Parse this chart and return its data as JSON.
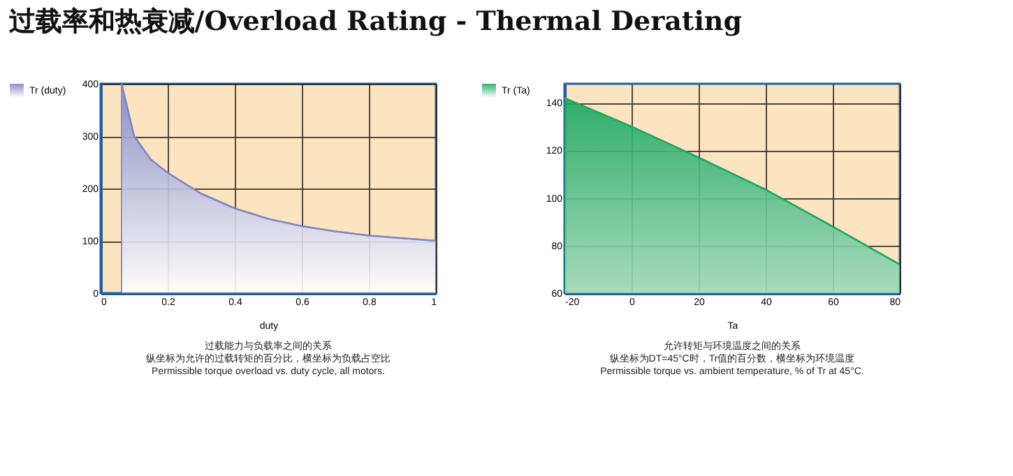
{
  "chart_data": [
    {
      "type": "area",
      "title": "过载率和热衰减/Overload Rating - Thermal Derating",
      "xlabel": "duty",
      "legend": "left",
      "grid": true,
      "x": [
        0.0625,
        0.1,
        0.15,
        0.2,
        0.3,
        0.4,
        0.5,
        0.6,
        0.7,
        0.8,
        0.9,
        1
      ],
      "series": [
        {
          "name": "Tr (duty)",
          "color": "#7f86c6",
          "values": [
            400,
            300,
            255,
            230,
            190,
            162,
            142,
            128,
            118,
            110,
            105,
            100
          ]
        }
      ],
      "xlim": [
        0,
        1
      ],
      "xticks": [
        0,
        0.2,
        0.4,
        0.6,
        0.8,
        1
      ],
      "ylim": [
        0,
        400
      ],
      "yticks": [
        0,
        100,
        200,
        300,
        400
      ],
      "annotations": [
        "过载能力与负载率之间的关系",
        "纵坐标为允许的过载转矩的百分比，横坐标为负载占空比",
        "Permissible torque overload vs. duty cycle, all motors."
      ]
    },
    {
      "type": "area",
      "xlabel": "Ta",
      "legend": "left",
      "grid": true,
      "x": [
        -20,
        0,
        20,
        40,
        60,
        80
      ],
      "series": [
        {
          "name": "Tr (Ta)",
          "color": "#1aa860",
          "values": [
            142,
            130,
            117,
            103.5,
            88,
            72
          ]
        }
      ],
      "xlim": [
        -20,
        80
      ],
      "xticks": [
        -20,
        0,
        20,
        40,
        60,
        80
      ],
      "ylim": [
        60,
        148
      ],
      "yticks": [
        60,
        80,
        100,
        120,
        140
      ],
      "annotations": [
        "允许转矩与环境温度之间的关系",
        "纵坐标为DT=45°C时，Tr值的百分数，横坐标为环境温度",
        "Permissible torque vs. ambient temperature, % of Tr at 45°C."
      ]
    }
  ]
}
